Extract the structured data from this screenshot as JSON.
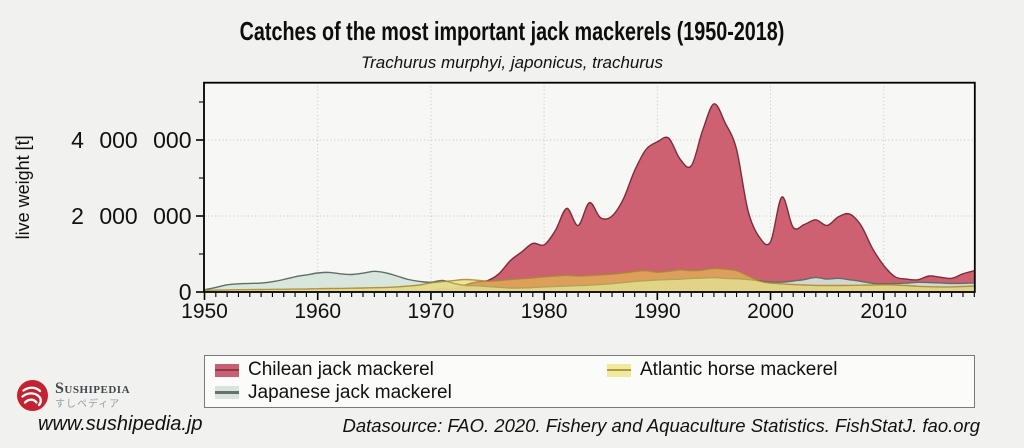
{
  "title": "Catches of the most important jack mackerels (1950-2018)",
  "subtitle": "Trachurus murphyi, japonicus, trachurus",
  "y_axis": {
    "label": "live weight [t]",
    "tick_labels": [
      "0",
      "2 000 000",
      "4 000 000"
    ]
  },
  "x_axis": {
    "tick_labels": [
      "1950",
      "1960",
      "1970",
      "1980",
      "1990",
      "2000",
      "2010"
    ]
  },
  "legend": {
    "items": [
      {
        "label": "Chilean jack mackerel",
        "fill": "#c96071",
        "line": "#8c3a46"
      },
      {
        "label": "Japanese jack mackerel",
        "fill": "#d7e5dc",
        "line": "#667169"
      },
      {
        "label": "Atlantic horse mackerel",
        "fill": "#f0ea9c",
        "line": "#b09a45"
      }
    ]
  },
  "footer": {
    "site": "www.sushipedia.jp",
    "datasource": "Datasource: FAO. 2020. Fishery and Aquaculture Statistics. FishStatJ. fao.org"
  },
  "logo": {
    "latin": "Sushipedia",
    "jp": "すしペディア"
  },
  "chart_data": {
    "type": "area",
    "title": "Catches of the most important jack mackerels (1950-2018)",
    "subtitle": "Trachurus murphyi, japonicus, trachurus",
    "ylabel": "live weight [t]",
    "xlabel": "",
    "ylim": [
      0,
      5500000
    ],
    "xlim": [
      1950,
      2018
    ],
    "grid": "dotted, major ticks only",
    "legend_position": "bottom",
    "x_start": 1950,
    "x_step": 1,
    "series": [
      {
        "name": "Chilean jack mackerel",
        "fill": "#cd6172",
        "stroke": "#7c2d3a",
        "fill_opacity": 1,
        "stroke_opacity": 1,
        "values_kt": [
          5,
          5,
          5,
          6,
          6,
          7,
          8,
          8,
          9,
          10,
          10,
          12,
          12,
          13,
          14,
          15,
          15,
          16,
          18,
          25,
          40,
          90,
          70,
          180,
          260,
          300,
          480,
          820,
          1050,
          1280,
          1240,
          1620,
          2200,
          1750,
          2350,
          1950,
          2000,
          2450,
          3200,
          3750,
          3950,
          4050,
          3500,
          3320,
          4250,
          4950,
          4450,
          3750,
          2150,
          1450,
          1320,
          2500,
          1700,
          1780,
          1900,
          1750,
          1980,
          2050,
          1750,
          1150,
          700,
          400,
          340,
          320,
          420,
          390,
          360,
          480,
          560
        ]
      },
      {
        "name": "Japanese jack mackerel",
        "fill": "#d5e3da",
        "stroke": "#5f6e66",
        "fill_opacity": 0.9,
        "stroke_opacity": 1,
        "values_kt": [
          60,
          120,
          190,
          215,
          225,
          235,
          270,
          330,
          400,
          450,
          500,
          515,
          480,
          460,
          495,
          545,
          505,
          420,
          330,
          280,
          255,
          305,
          230,
          175,
          165,
          145,
          125,
          105,
          108,
          118,
          135,
          148,
          158,
          168,
          178,
          198,
          218,
          248,
          278,
          298,
          318,
          328,
          338,
          358,
          368,
          378,
          358,
          348,
          328,
          298,
          265,
          260,
          290,
          330,
          385,
          340,
          360,
          320,
          280,
          230,
          215,
          220,
          235,
          255,
          250,
          240,
          225,
          230,
          240
        ]
      },
      {
        "name": "Atlantic horse mackerel",
        "fill": "#edd44a",
        "stroke": "#a5872f",
        "fill_opacity": 0.55,
        "stroke_opacity": 0.85,
        "values_kt": [
          45,
          50,
          55,
          60,
          62,
          65,
          70,
          72,
          75,
          80,
          88,
          92,
          95,
          100,
          105,
          112,
          120,
          135,
          155,
          185,
          240,
          270,
          300,
          330,
          310,
          285,
          300,
          330,
          350,
          370,
          400,
          420,
          440,
          420,
          435,
          450,
          470,
          500,
          540,
          560,
          520,
          545,
          585,
          560,
          580,
          620,
          600,
          560,
          430,
          290,
          235,
          215,
          195,
          185,
          175,
          172,
          172,
          175,
          180,
          185,
          190,
          185,
          170,
          150,
          140,
          135,
          135,
          145,
          155
        ]
      }
    ]
  }
}
